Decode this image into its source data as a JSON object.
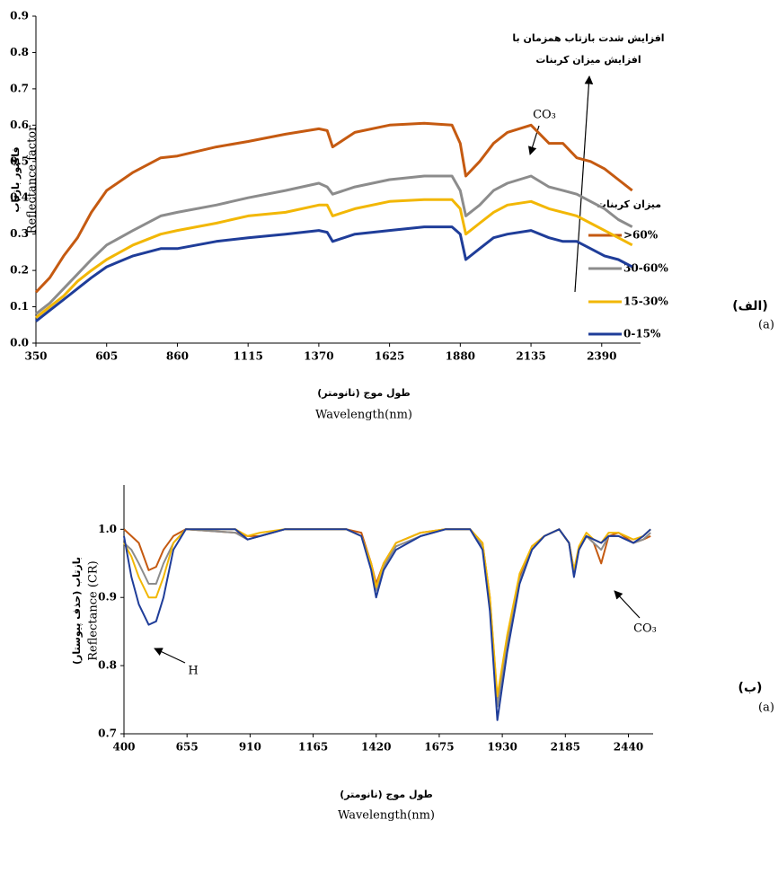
{
  "chart_data": [
    {
      "type": "line",
      "panel_label": [
        "(الف)",
        "(a)"
      ],
      "y_label": [
        "فاکتور بازتاب",
        "Reflectance  factor"
      ],
      "x_label": [
        "طول موج (نانومتر)",
        "Wavelength(nm)"
      ],
      "annotations": [
        "CO₃"
      ],
      "arrow_note": [
        "افزایش شدت بازتاب همزمان با",
        "افزایش میزان کربنات"
      ],
      "legend_title": "میزان کربنات",
      "legend": "right",
      "xlim": [
        350,
        2530
      ],
      "xticks": [
        350,
        605,
        860,
        1115,
        1370,
        1625,
        1880,
        2135,
        2390
      ],
      "ylim": [
        0,
        0.9
      ],
      "yticks": [
        {
          "value": 0,
          "label": "0.0"
        },
        0.1,
        0.2,
        0.3,
        0.4,
        0.5,
        0.6,
        0.7,
        0.8,
        0.9
      ],
      "x": [
        350,
        400,
        450,
        500,
        550,
        605,
        700,
        800,
        860,
        1000,
        1115,
        1250,
        1370,
        1400,
        1420,
        1500,
        1625,
        1750,
        1850,
        1880,
        1900,
        1950,
        2000,
        2050,
        2135,
        2200,
        2250,
        2300,
        2350,
        2400,
        2450,
        2500
      ],
      "series": [
        {
          "name": ">60%",
          "color": "#c55a11",
          "values": [
            0.14,
            0.18,
            0.24,
            0.29,
            0.36,
            0.42,
            0.47,
            0.51,
            0.515,
            0.54,
            0.555,
            0.575,
            0.59,
            0.585,
            0.54,
            0.58,
            0.6,
            0.605,
            0.6,
            0.55,
            0.46,
            0.5,
            0.55,
            0.58,
            0.6,
            0.55,
            0.55,
            0.51,
            0.5,
            0.48,
            0.45,
            0.42
          ]
        },
        {
          "name": "30-60%",
          "color": "#8c8c8c",
          "values": [
            0.08,
            0.11,
            0.15,
            0.19,
            0.23,
            0.27,
            0.31,
            0.35,
            0.36,
            0.38,
            0.4,
            0.42,
            0.44,
            0.43,
            0.41,
            0.43,
            0.45,
            0.46,
            0.46,
            0.42,
            0.35,
            0.38,
            0.42,
            0.44,
            0.46,
            0.43,
            0.42,
            0.41,
            0.39,
            0.37,
            0.34,
            0.32
          ]
        },
        {
          "name": "15-30%",
          "color": "#f2b705",
          "values": [
            0.07,
            0.1,
            0.13,
            0.17,
            0.2,
            0.23,
            0.27,
            0.3,
            0.31,
            0.33,
            0.35,
            0.36,
            0.38,
            0.38,
            0.35,
            0.37,
            0.39,
            0.395,
            0.395,
            0.37,
            0.3,
            0.33,
            0.36,
            0.38,
            0.39,
            0.37,
            0.36,
            0.35,
            0.33,
            0.31,
            0.29,
            0.27
          ]
        },
        {
          "name": "0-15%",
          "color": "#1f3d99",
          "values": [
            0.06,
            0.09,
            0.12,
            0.15,
            0.18,
            0.21,
            0.24,
            0.26,
            0.26,
            0.28,
            0.29,
            0.3,
            0.31,
            0.305,
            0.28,
            0.3,
            0.31,
            0.32,
            0.32,
            0.3,
            0.23,
            0.26,
            0.29,
            0.3,
            0.31,
            0.29,
            0.28,
            0.28,
            0.26,
            0.24,
            0.23,
            0.21
          ]
        }
      ]
    },
    {
      "type": "line",
      "panel_label": [
        "(ب)",
        "(a)"
      ],
      "y_label": [
        "بازتاب (حذف پیوستار)",
        "Reflectance (CR)"
      ],
      "x_label": [
        "طول موج (نانومتر)",
        "Wavelength(nm)"
      ],
      "annotations": [
        "H",
        "CO₃"
      ],
      "xlim": [
        400,
        2540
      ],
      "xticks": [
        400,
        655,
        910,
        1165,
        1420,
        1675,
        1930,
        2185,
        2440
      ],
      "ylim": [
        0.7,
        1.065
      ],
      "yticks": [
        0.7,
        0.8,
        0.9,
        {
          "value": 1,
          "label": "1.0"
        }
      ],
      "x": [
        400,
        430,
        460,
        500,
        530,
        560,
        600,
        650,
        850,
        900,
        950,
        1050,
        1300,
        1360,
        1400,
        1420,
        1450,
        1500,
        1600,
        1700,
        1800,
        1850,
        1880,
        1910,
        1950,
        2000,
        2050,
        2100,
        2160,
        2200,
        2220,
        2240,
        2270,
        2300,
        2330,
        2360,
        2400,
        2460,
        2500,
        2530
      ],
      "series": [
        {
          "color": "#c55a11",
          "values": [
            1.0,
            0.99,
            0.98,
            0.94,
            0.945,
            0.97,
            0.99,
            1.0,
            0.995,
            0.99,
            0.99,
            1.0,
            1.0,
            0.995,
            0.95,
            0.92,
            0.95,
            0.98,
            0.995,
            1.0,
            1.0,
            0.98,
            0.9,
            0.75,
            0.84,
            0.93,
            0.975,
            0.99,
            1.0,
            0.98,
            0.94,
            0.97,
            0.99,
            0.98,
            0.95,
            0.99,
            0.995,
            0.98,
            0.985,
            0.99
          ]
        },
        {
          "color": "#8c8c8c",
          "values": [
            0.98,
            0.97,
            0.95,
            0.92,
            0.92,
            0.95,
            0.98,
            1.0,
            0.995,
            0.985,
            0.99,
            1.0,
            1.0,
            0.99,
            0.945,
            0.91,
            0.945,
            0.975,
            0.99,
            1.0,
            1.0,
            0.975,
            0.89,
            0.74,
            0.83,
            0.925,
            0.97,
            0.99,
            1.0,
            0.98,
            0.935,
            0.97,
            0.99,
            0.98,
            0.97,
            0.99,
            0.99,
            0.98,
            0.985,
            0.995
          ]
        },
        {
          "color": "#f2b705",
          "values": [
            0.98,
            0.96,
            0.93,
            0.9,
            0.9,
            0.93,
            0.98,
            1.0,
            1.0,
            0.99,
            0.995,
            1.0,
            1.0,
            0.99,
            0.95,
            0.915,
            0.95,
            0.98,
            0.995,
            1.0,
            1.0,
            0.98,
            0.9,
            0.755,
            0.845,
            0.935,
            0.975,
            0.99,
            1.0,
            0.98,
            0.94,
            0.975,
            0.995,
            0.985,
            0.98,
            0.995,
            0.995,
            0.985,
            0.99,
            1.0
          ]
        },
        {
          "color": "#1f3d99",
          "values": [
            0.99,
            0.93,
            0.89,
            0.86,
            0.865,
            0.9,
            0.97,
            1.0,
            1.0,
            0.985,
            0.99,
            1.0,
            1.0,
            0.99,
            0.94,
            0.9,
            0.94,
            0.97,
            0.99,
            1.0,
            1.0,
            0.97,
            0.88,
            0.72,
            0.82,
            0.92,
            0.97,
            0.99,
            1.0,
            0.98,
            0.93,
            0.97,
            0.99,
            0.985,
            0.98,
            0.99,
            0.99,
            0.98,
            0.99,
            1.0
          ]
        }
      ]
    }
  ]
}
